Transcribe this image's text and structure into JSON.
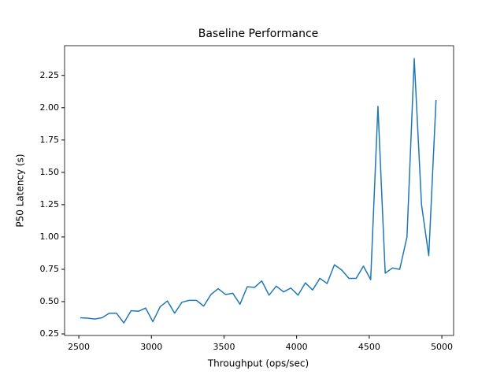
{
  "chart_data": {
    "type": "line",
    "title": "Baseline Performance",
    "x_label": "Throughput (ops/sec)",
    "y_label": "P50 Latency (s)",
    "x": [
      2510,
      2560,
      2610,
      2660,
      2710,
      2760,
      2810,
      2860,
      2910,
      2960,
      3010,
      3060,
      3110,
      3160,
      3210,
      3260,
      3310,
      3360,
      3410,
      3460,
      3510,
      3560,
      3610,
      3660,
      3710,
      3760,
      3810,
      3860,
      3910,
      3960,
      4010,
      4060,
      4110,
      4160,
      4210,
      4260,
      4310,
      4360,
      4410,
      4460,
      4510,
      4560,
      4610,
      4660,
      4710,
      4760,
      4810,
      4860,
      4910,
      4960
    ],
    "series": [
      {
        "color": "#1f77b4",
        "values": [
          0.375,
          0.372,
          0.365,
          0.375,
          0.41,
          0.41,
          0.335,
          0.43,
          0.425,
          0.45,
          0.345,
          0.46,
          0.505,
          0.41,
          0.495,
          0.51,
          0.51,
          0.465,
          0.555,
          0.6,
          0.555,
          0.565,
          0.48,
          0.615,
          0.61,
          0.66,
          0.55,
          0.62,
          0.575,
          0.605,
          0.55,
          0.645,
          0.59,
          0.68,
          0.64,
          0.785,
          0.745,
          0.68,
          0.68,
          0.775,
          0.67,
          2.01,
          0.72,
          0.76,
          0.75,
          1.0,
          2.38,
          1.25,
          0.855,
          2.06
        ]
      }
    ],
    "xlim": [
      2402,
      5081
    ],
    "ylim": [
      0.238,
      2.48
    ],
    "xticks": [
      2500,
      3000,
      3500,
      4000,
      4500,
      5000
    ],
    "yticks": [
      0.25,
      {
        "value": 0.5,
        "label": "0.50"
      },
      0.75,
      {
        "value": 1,
        "label": "1.00"
      },
      1.25,
      {
        "value": 1.5,
        "label": "1.50"
      },
      1.75,
      {
        "value": 2,
        "label": "2.00"
      },
      2.25
    ],
    "grid": false
  }
}
